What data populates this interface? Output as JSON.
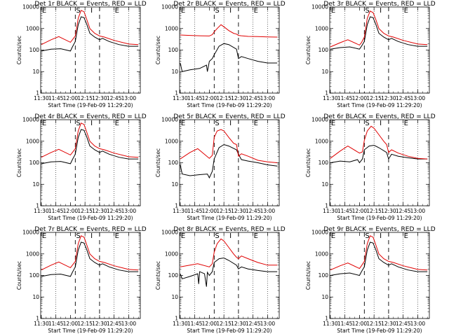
{
  "colors": {
    "events": "#000000",
    "lld": "#e00000",
    "background": "#ffffff"
  },
  "x_tick_labels": [
    "11:30",
    "11:45",
    "12:00",
    "12:15",
    "12:30",
    "12:45",
    "13:00"
  ],
  "y_tick_labels": [
    "1",
    "10",
    "100",
    "1000",
    "10000"
  ],
  "x_label": "Start Time (19-Feb-09 11:29:20)",
  "y_label": "Counts/sec",
  "markers": [
    "E",
    "S",
    "I",
    "E"
  ],
  "chart_data": [
    {
      "type": "line",
      "title": "Det 1r BLACK = Events, RED = LLD",
      "xlim": [
        "11:29:20",
        "13:12"
      ],
      "ylim": [
        1,
        10000
      ],
      "yscale": "log",
      "grid": "dotted verticals",
      "vlines": {
        "dashed": [
          "12:05",
          "12:30"
        ],
        "dotted": [
          "11:45",
          "12:15",
          "12:45",
          "13:00"
        ]
      },
      "series": [
        {
          "name": "Events",
          "x": [
            "11:30",
            "11:40",
            "11:50",
            "12:00",
            "12:02",
            "12:05",
            "12:08",
            "12:11",
            "12:14",
            "12:17",
            "12:20",
            "12:25",
            "12:30",
            "12:33",
            "12:40",
            "12:50",
            "13:00",
            "13:10"
          ],
          "values": [
            90,
            110,
            115,
            90,
            140,
            250,
            1500,
            3500,
            3200,
            1500,
            600,
            400,
            300,
            350,
            250,
            180,
            150,
            150
          ]
        },
        {
          "name": "LLD",
          "x": [
            "11:30",
            "11:40",
            "11:48",
            "12:00",
            "12:02",
            "12:05",
            "12:08",
            "12:11",
            "12:14",
            "12:17",
            "12:20",
            "12:25",
            "12:30",
            "12:35",
            "12:45",
            "13:00",
            "13:10"
          ],
          "values": [
            180,
            300,
            420,
            230,
            300,
            450,
            3000,
            7000,
            6000,
            2500,
            1000,
            600,
            450,
            400,
            280,
            190,
            180
          ]
        }
      ]
    },
    {
      "type": "line",
      "title": "Det 2r BLACK = Events, RED = LLD",
      "xlim": [
        "11:29:20",
        "13:12"
      ],
      "ylim": [
        1,
        10000
      ],
      "yscale": "log",
      "grid": "dotted verticals",
      "vlines": {
        "dashed": [
          "12:05",
          "12:30"
        ],
        "dotted": [
          "11:45",
          "12:15",
          "12:45",
          "13:00"
        ]
      },
      "series": [
        {
          "name": "Events",
          "x": [
            "11:30",
            "11:32",
            "11:40",
            "11:50",
            "11:57",
            "11:58",
            "12:00",
            "12:03",
            "12:05",
            "12:10",
            "12:15",
            "12:20",
            "12:28",
            "12:30",
            "12:33",
            "12:40",
            "12:50",
            "13:00",
            "13:10"
          ],
          "values": [
            25,
            10,
            12,
            14,
            20,
            10,
            30,
            40,
            60,
            150,
            200,
            180,
            110,
            40,
            50,
            40,
            30,
            25,
            25
          ]
        },
        {
          "name": "LLD",
          "x": [
            "11:30",
            "11:40",
            "11:50",
            "12:00",
            "12:03",
            "12:05",
            "12:08",
            "12:12",
            "12:15",
            "12:20",
            "12:25",
            "12:28",
            "12:30",
            "12:33",
            "12:40",
            "12:50",
            "13:00",
            "13:10"
          ],
          "values": [
            500,
            480,
            460,
            450,
            520,
            700,
            1000,
            1500,
            1200,
            800,
            600,
            550,
            480,
            460,
            430,
            420,
            410,
            400
          ]
        }
      ]
    },
    {
      "type": "line",
      "title": "Det 3r BLACK = Events, RED = LLD",
      "xlim": [
        "11:29:20",
        "13:12"
      ],
      "ylim": [
        1,
        10000
      ],
      "yscale": "log",
      "grid": "dotted verticals",
      "vlines": {
        "dashed": [
          "12:05",
          "12:30"
        ],
        "dotted": [
          "11:45",
          "12:15",
          "12:45",
          "13:00"
        ]
      },
      "series": [
        {
          "name": "Events",
          "x": [
            "11:30",
            "11:40",
            "11:50",
            "12:00",
            "12:02",
            "12:05",
            "12:08",
            "12:11",
            "12:14",
            "12:17",
            "12:20",
            "12:25",
            "12:30",
            "12:33",
            "12:40",
            "12:50",
            "13:00",
            "13:10"
          ],
          "values": [
            110,
            130,
            140,
            110,
            150,
            250,
            1500,
            3500,
            3200,
            1500,
            600,
            400,
            300,
            350,
            250,
            180,
            150,
            150
          ]
        },
        {
          "name": "LLD",
          "x": [
            "11:30",
            "11:40",
            "11:48",
            "12:00",
            "12:02",
            "12:05",
            "12:08",
            "12:11",
            "12:14",
            "12:17",
            "12:20",
            "12:25",
            "12:30",
            "12:35",
            "12:45",
            "13:00",
            "13:10"
          ],
          "values": [
            140,
            220,
            300,
            170,
            220,
            400,
            3000,
            6500,
            5500,
            2500,
            1000,
            600,
            450,
            400,
            280,
            190,
            180
          ]
        }
      ]
    },
    {
      "type": "line",
      "title": "Det 4r BLACK = Events, RED = LLD",
      "xlim": [
        "11:29:20",
        "13:12"
      ],
      "ylim": [
        1,
        10000
      ],
      "yscale": "log",
      "grid": "dotted verticals",
      "vlines": {
        "dashed": [
          "12:05",
          "12:30"
        ],
        "dotted": [
          "11:45",
          "12:15",
          "12:45",
          "13:00"
        ]
      },
      "series": [
        {
          "name": "Events",
          "x": [
            "11:30",
            "11:40",
            "11:50",
            "12:00",
            "12:02",
            "12:05",
            "12:08",
            "12:11",
            "12:14",
            "12:17",
            "12:20",
            "12:25",
            "12:30",
            "12:33",
            "12:40",
            "12:50",
            "13:00",
            "13:10"
          ],
          "values": [
            90,
            110,
            115,
            90,
            140,
            250,
            1500,
            3500,
            3200,
            1500,
            600,
            400,
            300,
            350,
            250,
            180,
            150,
            150
          ]
        },
        {
          "name": "LLD",
          "x": [
            "11:30",
            "11:40",
            "11:48",
            "12:00",
            "12:02",
            "12:05",
            "12:08",
            "12:11",
            "12:14",
            "12:17",
            "12:20",
            "12:25",
            "12:30",
            "12:35",
            "12:45",
            "13:00",
            "13:10"
          ],
          "values": [
            180,
            300,
            420,
            230,
            300,
            450,
            3000,
            7000,
            6000,
            2500,
            1000,
            600,
            450,
            400,
            280,
            190,
            180
          ]
        }
      ]
    },
    {
      "type": "line",
      "title": "Det 5r BLACK = Events, RED = LLD",
      "xlim": [
        "11:29:20",
        "13:12"
      ],
      "ylim": [
        1,
        10000
      ],
      "yscale": "log",
      "grid": "dotted verticals",
      "vlines": {
        "dashed": [
          "12:05",
          "12:30"
        ],
        "dotted": [
          "11:45",
          "12:15",
          "12:45",
          "13:00"
        ]
      },
      "series": [
        {
          "name": "Events",
          "x": [
            "11:30",
            "11:32",
            "11:40",
            "11:50",
            "11:58",
            "12:00",
            "12:03",
            "12:05",
            "12:10",
            "12:15",
            "12:20",
            "12:28",
            "12:30",
            "12:33",
            "12:40",
            "12:50",
            "13:00",
            "13:10"
          ],
          "values": [
            80,
            30,
            25,
            28,
            30,
            20,
            40,
            150,
            500,
            700,
            600,
            400,
            250,
            140,
            120,
            100,
            80,
            70
          ]
        },
        {
          "name": "LLD",
          "x": [
            "11:30",
            "11:40",
            "11:48",
            "12:00",
            "12:03",
            "12:05",
            "12:08",
            "12:12",
            "12:15",
            "12:20",
            "12:25",
            "12:28",
            "12:30",
            "12:33",
            "12:40",
            "12:50",
            "13:00",
            "13:10"
          ],
          "values": [
            150,
            300,
            450,
            160,
            220,
            1500,
            3000,
            3500,
            3000,
            1500,
            800,
            700,
            200,
            260,
            200,
            130,
            110,
            100
          ]
        }
      ]
    },
    {
      "type": "line",
      "title": "Det 6r BLACK = Events, RED = LLD",
      "xlim": [
        "11:29:20",
        "13:12"
      ],
      "ylim": [
        1,
        10000
      ],
      "yscale": "log",
      "grid": "dotted verticals",
      "vlines": {
        "dashed": [
          "12:05",
          "12:30"
        ],
        "dotted": [
          "11:45",
          "12:15",
          "12:45",
          "13:00"
        ]
      },
      "series": [
        {
          "name": "Events",
          "x": [
            "11:30",
            "11:40",
            "11:50",
            "11:58",
            "12:00",
            "12:03",
            "12:05",
            "12:10",
            "12:15",
            "12:20",
            "12:28",
            "12:30",
            "12:33",
            "12:40",
            "12:50",
            "13:00",
            "13:10"
          ],
          "values": [
            100,
            120,
            110,
            140,
            100,
            150,
            400,
            600,
            650,
            500,
            300,
            150,
            250,
            200,
            170,
            150,
            150
          ]
        },
        {
          "name": "LLD",
          "x": [
            "11:30",
            "11:40",
            "11:48",
            "12:00",
            "12:03",
            "12:05",
            "12:08",
            "12:12",
            "12:15",
            "12:20",
            "12:25",
            "12:28",
            "12:30",
            "12:33",
            "12:40",
            "12:50",
            "13:00",
            "13:10"
          ],
          "values": [
            160,
            350,
            600,
            280,
            320,
            1100,
            3000,
            5000,
            4000,
            2000,
            1000,
            700,
            300,
            400,
            280,
            200,
            160,
            150
          ]
        }
      ]
    },
    {
      "type": "line",
      "title": "Det 7r BLACK = Events, RED = LLD",
      "xlim": [
        "11:29:20",
        "13:12"
      ],
      "ylim": [
        1,
        10000
      ],
      "yscale": "log",
      "grid": "dotted verticals",
      "vlines": {
        "dashed": [
          "12:05",
          "12:30"
        ],
        "dotted": [
          "11:45",
          "12:15",
          "12:45",
          "13:00"
        ]
      },
      "series": [
        {
          "name": "Events",
          "x": [
            "11:30",
            "11:40",
            "11:50",
            "12:00",
            "12:02",
            "12:05",
            "12:08",
            "12:11",
            "12:14",
            "12:17",
            "12:20",
            "12:25",
            "12:30",
            "12:33",
            "12:40",
            "12:50",
            "13:00",
            "13:10"
          ],
          "values": [
            90,
            110,
            115,
            90,
            140,
            250,
            1500,
            3500,
            3200,
            1500,
            600,
            400,
            300,
            350,
            250,
            180,
            150,
            150
          ]
        },
        {
          "name": "LLD",
          "x": [
            "11:30",
            "11:40",
            "11:48",
            "12:00",
            "12:02",
            "12:05",
            "12:08",
            "12:11",
            "12:14",
            "12:17",
            "12:20",
            "12:25",
            "12:30",
            "12:35",
            "12:45",
            "13:00",
            "13:10"
          ],
          "values": [
            180,
            300,
            420,
            230,
            300,
            450,
            3000,
            7000,
            6000,
            2500,
            1000,
            600,
            450,
            400,
            280,
            190,
            180
          ]
        }
      ]
    },
    {
      "type": "line",
      "title": "Det 8r BLACK = Events, RED = LLD",
      "xlim": [
        "11:29:20",
        "13:12"
      ],
      "ylim": [
        1,
        10000
      ],
      "yscale": "log",
      "grid": "dotted verticals",
      "vlines": {
        "dashed": [
          "12:05",
          "12:30"
        ],
        "dotted": [
          "11:45",
          "12:15",
          "12:45",
          "13:00"
        ]
      },
      "series": [
        {
          "name": "Events",
          "x": [
            "11:30",
            "11:32",
            "11:40",
            "11:48",
            "11:49",
            "11:50",
            "11:55",
            "11:57",
            "11:58",
            "12:00",
            "12:03",
            "12:05",
            "12:10",
            "12:15",
            "12:20",
            "12:28",
            "12:30",
            "12:33",
            "12:40",
            "12:50",
            "13:00",
            "13:10"
          ],
          "values": [
            120,
            70,
            90,
            120,
            40,
            150,
            120,
            30,
            140,
            100,
            150,
            400,
            600,
            650,
            500,
            300,
            200,
            250,
            200,
            170,
            150,
            150
          ]
        },
        {
          "name": "LLD",
          "x": [
            "11:30",
            "11:40",
            "11:48",
            "12:00",
            "12:03",
            "12:05",
            "12:08",
            "12:12",
            "12:15",
            "12:20",
            "12:25",
            "12:28",
            "12:30",
            "12:33",
            "12:40",
            "12:50",
            "13:00",
            "13:10"
          ],
          "values": [
            250,
            300,
            350,
            250,
            350,
            1200,
            3000,
            5000,
            4000,
            2000,
            1000,
            700,
            600,
            800,
            600,
            400,
            300,
            300
          ]
        }
      ]
    },
    {
      "type": "line",
      "title": "Det 9r BLACK = Events, RED = LLD",
      "xlim": [
        "11:29:20",
        "13:12"
      ],
      "ylim": [
        1,
        10000
      ],
      "yscale": "log",
      "grid": "dotted verticals",
      "vlines": {
        "dashed": [
          "12:05",
          "12:30"
        ],
        "dotted": [
          "11:45",
          "12:15",
          "12:45",
          "13:00"
        ]
      },
      "series": [
        {
          "name": "Events",
          "x": [
            "11:30",
            "11:40",
            "11:50",
            "12:00",
            "12:02",
            "12:05",
            "12:08",
            "12:11",
            "12:14",
            "12:17",
            "12:20",
            "12:25",
            "12:30",
            "12:33",
            "12:40",
            "12:50",
            "13:00",
            "13:10"
          ],
          "values": [
            100,
            120,
            130,
            100,
            150,
            250,
            1500,
            3500,
            3200,
            1500,
            600,
            400,
            300,
            350,
            250,
            180,
            150,
            150
          ]
        },
        {
          "name": "LLD",
          "x": [
            "11:30",
            "11:40",
            "11:48",
            "12:00",
            "12:02",
            "12:05",
            "12:08",
            "12:11",
            "12:14",
            "12:17",
            "12:20",
            "12:25",
            "12:30",
            "12:35",
            "12:45",
            "13:00",
            "13:10"
          ],
          "values": [
            180,
            280,
            380,
            210,
            280,
            450,
            3000,
            7000,
            6000,
            2500,
            1000,
            600,
            450,
            400,
            280,
            190,
            180
          ]
        }
      ]
    }
  ]
}
